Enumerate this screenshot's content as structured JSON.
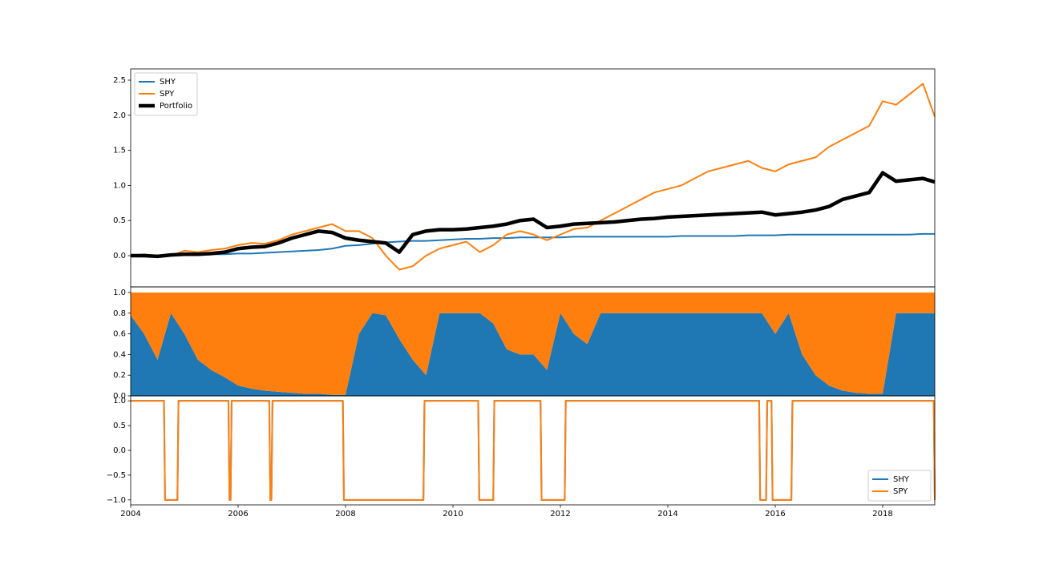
{
  "chart_data": [
    {
      "type": "line",
      "legend": "upper left",
      "x": [
        2004,
        2004.25,
        2004.5,
        2004.75,
        2005,
        2005.25,
        2005.5,
        2005.75,
        2006,
        2006.25,
        2006.5,
        2006.75,
        2007,
        2007.25,
        2007.5,
        2007.75,
        2008,
        2008.25,
        2008.5,
        2008.75,
        2009,
        2009.25,
        2009.5,
        2009.75,
        2010,
        2010.25,
        2010.5,
        2010.75,
        2011,
        2011.25,
        2011.5,
        2011.75,
        2012,
        2012.25,
        2012.5,
        2012.75,
        2013,
        2013.25,
        2013.5,
        2013.75,
        2014,
        2014.25,
        2014.5,
        2014.75,
        2015,
        2015.25,
        2015.5,
        2015.75,
        2016,
        2016.25,
        2016.5,
        2016.75,
        2017,
        2017.25,
        2017.5,
        2017.75,
        2018,
        2018.25,
        2018.5,
        2018.75,
        2018.97
      ],
      "xlim": [
        2004,
        2018.97
      ],
      "ylim": [
        -0.445,
        2.66
      ],
      "yticks": [
        {
          "value": 0,
          "label": "0.0"
        },
        {
          "value": 0.5,
          "label": "0.5"
        },
        {
          "value": 1,
          "label": "1.0"
        },
        {
          "value": 1.5,
          "label": "1.5"
        },
        {
          "value": 2,
          "label": "2.0"
        },
        {
          "value": 2.5,
          "label": "2.5"
        }
      ],
      "series": [
        {
          "name": "SHY",
          "color": "#1f77b4",
          "width": 2,
          "values": [
            0,
            0,
            0,
            0.01,
            0.01,
            0.01,
            0.02,
            0.02,
            0.03,
            0.03,
            0.04,
            0.05,
            0.06,
            0.07,
            0.08,
            0.1,
            0.14,
            0.15,
            0.17,
            0.19,
            0.2,
            0.21,
            0.21,
            0.22,
            0.23,
            0.24,
            0.24,
            0.25,
            0.25,
            0.26,
            0.26,
            0.26,
            0.26,
            0.27,
            0.27,
            0.27,
            0.27,
            0.27,
            0.27,
            0.27,
            0.27,
            0.28,
            0.28,
            0.28,
            0.28,
            0.28,
            0.29,
            0.29,
            0.29,
            0.3,
            0.3,
            0.3,
            0.3,
            0.3,
            0.3,
            0.3,
            0.3,
            0.3,
            0.3,
            0.31,
            0.31
          ]
        },
        {
          "name": "SPY",
          "color": "#ff7f0e",
          "width": 2,
          "values": [
            0,
            0.02,
            0,
            0,
            0.07,
            0.05,
            0.08,
            0.1,
            0.15,
            0.18,
            0.17,
            0.22,
            0.3,
            0.35,
            0.4,
            0.45,
            0.35,
            0.35,
            0.25,
            0,
            -0.2,
            -0.15,
            0,
            0.1,
            0.15,
            0.2,
            0.05,
            0.15,
            0.3,
            0.35,
            0.3,
            0.22,
            0.3,
            0.38,
            0.4,
            0.5,
            0.6,
            0.7,
            0.8,
            0.9,
            0.95,
            1,
            1.1,
            1.2,
            1.25,
            1.3,
            1.35,
            1.25,
            1.2,
            1.3,
            1.35,
            1.4,
            1.55,
            1.65,
            1.75,
            1.85,
            2.2,
            2.15,
            2.3,
            2.45,
            1.98
          ]
        },
        {
          "name": "Portfolio",
          "color": "#000000",
          "width": 4.5,
          "values": [
            0,
            0,
            -0.01,
            0.01,
            0.02,
            0.02,
            0.03,
            0.05,
            0.1,
            0.12,
            0.13,
            0.18,
            0.25,
            0.3,
            0.35,
            0.33,
            0.25,
            0.22,
            0.2,
            0.18,
            0.05,
            0.3,
            0.35,
            0.37,
            0.37,
            0.38,
            0.4,
            0.42,
            0.45,
            0.5,
            0.52,
            0.4,
            0.42,
            0.45,
            0.46,
            0.47,
            0.48,
            0.5,
            0.52,
            0.53,
            0.55,
            0.56,
            0.57,
            0.58,
            0.59,
            0.6,
            0.61,
            0.62,
            0.58,
            0.6,
            0.62,
            0.65,
            0.7,
            0.8,
            0.85,
            0.9,
            1.18,
            1.06,
            1.08,
            1.1,
            1.05
          ]
        }
      ]
    },
    {
      "type": "area",
      "x": [
        2004,
        2004.25,
        2004.5,
        2004.75,
        2005,
        2005.25,
        2005.5,
        2005.75,
        2006,
        2006.25,
        2006.5,
        2006.75,
        2007,
        2007.25,
        2007.5,
        2007.75,
        2008,
        2008.25,
        2008.5,
        2008.75,
        2009,
        2009.25,
        2009.5,
        2009.75,
        2010,
        2010.25,
        2010.5,
        2010.75,
        2011,
        2011.25,
        2011.5,
        2011.75,
        2012,
        2012.25,
        2012.5,
        2012.75,
        2013,
        2013.25,
        2013.5,
        2013.75,
        2014,
        2014.25,
        2014.5,
        2014.75,
        2015,
        2015.25,
        2015.5,
        2015.75,
        2016,
        2016.25,
        2016.5,
        2016.75,
        2017,
        2017.25,
        2017.5,
        2017.75,
        2018,
        2018.25,
        2018.5,
        2018.75,
        2018.97
      ],
      "xlim": [
        2004,
        2018.97
      ],
      "ylim": [
        0,
        1.054
      ],
      "yticks": [
        {
          "value": 0,
          "label": "0.0"
        },
        {
          "value": 0.2,
          "label": "0.2"
        },
        {
          "value": 0.4,
          "label": "0.4"
        },
        {
          "value": 0.6,
          "label": "0.6"
        },
        {
          "value": 0.8,
          "label": "0.8"
        },
        {
          "value": 1,
          "label": "1.0"
        }
      ],
      "series": [
        {
          "name": "SHY",
          "color": "#1f77b4",
          "values": [
            0.78,
            0.6,
            0.35,
            0.8,
            0.6,
            0.35,
            0.25,
            0.18,
            0.1,
            0.07,
            0.05,
            0.04,
            0.03,
            0.02,
            0.02,
            0.01,
            0.01,
            0.6,
            0.8,
            0.78,
            0.55,
            0.35,
            0.2,
            0.8,
            0.8,
            0.8,
            0.8,
            0.7,
            0.45,
            0.4,
            0.4,
            0.25,
            0.8,
            0.6,
            0.5,
            0.8,
            0.8,
            0.8,
            0.8,
            0.8,
            0.8,
            0.8,
            0.8,
            0.8,
            0.8,
            0.8,
            0.8,
            0.8,
            0.6,
            0.8,
            0.4,
            0.2,
            0.1,
            0.05,
            0.03,
            0.02,
            0.02,
            0.8,
            0.8,
            0.8,
            0.8
          ]
        },
        {
          "name": "SPY",
          "color": "#ff7f0e",
          "values": [
            0.22,
            0.4,
            0.65,
            0.2,
            0.4,
            0.65,
            0.75,
            0.82,
            0.9,
            0.93,
            0.95,
            0.96,
            0.97,
            0.98,
            0.98,
            0.99,
            0.99,
            0.4,
            0.2,
            0.22,
            0.45,
            0.65,
            0.8,
            0.2,
            0.2,
            0.2,
            0.2,
            0.3,
            0.55,
            0.6,
            0.6,
            0.75,
            0.2,
            0.4,
            0.5,
            0.2,
            0.2,
            0.2,
            0.2,
            0.2,
            0.2,
            0.2,
            0.2,
            0.2,
            0.2,
            0.2,
            0.2,
            0.2,
            0.4,
            0.2,
            0.6,
            0.8,
            0.9,
            0.95,
            0.97,
            0.98,
            0.98,
            0.2,
            0.2,
            0.2,
            0.2
          ]
        }
      ]
    },
    {
      "type": "line",
      "legend": "lower right",
      "x": [
        2004,
        2004.62,
        2004.64,
        2004.87,
        2004.89,
        2005.82,
        2005.84,
        2005.86,
        2005.88,
        2006.58,
        2006.6,
        2006.62,
        2006.64,
        2007.95,
        2007.97,
        2009.45,
        2009.47,
        2010.47,
        2010.49,
        2010.75,
        2010.77,
        2011.63,
        2011.65,
        2012.08,
        2012.1,
        2015.7,
        2015.72,
        2015.83,
        2015.85,
        2015.93,
        2015.95,
        2016.3,
        2016.32,
        2018.95,
        2018.97
      ],
      "xlim": [
        2004,
        2018.97
      ],
      "ylim": [
        -1.1,
        1.1
      ],
      "xticks": [
        2004,
        2006,
        2008,
        2010,
        2012,
        2014,
        2016,
        2018
      ],
      "yticks": [
        {
          "value": -1,
          "label": "−1.0"
        },
        {
          "value": -0.5,
          "label": "−0.5"
        },
        {
          "value": 0,
          "label": "0.0"
        },
        {
          "value": 0.5,
          "label": "0.5"
        },
        {
          "value": 1,
          "label": "1.0"
        }
      ],
      "series": [
        {
          "name": "SHY",
          "color": "#1f77b4",
          "width": 2,
          "values": [
            1,
            1,
            -1,
            -1,
            1,
            1,
            -1,
            -1,
            1,
            1,
            -1,
            -1,
            1,
            1,
            -1,
            -1,
            1,
            1,
            -1,
            -1,
            1,
            1,
            -1,
            -1,
            1,
            1,
            -1,
            -1,
            1,
            1,
            -1,
            -1,
            1,
            1,
            -1
          ]
        },
        {
          "name": "SPY",
          "color": "#ff7f0e",
          "width": 2,
          "values": [
            1,
            1,
            -1,
            -1,
            1,
            1,
            -1,
            -1,
            1,
            1,
            -1,
            -1,
            1,
            1,
            -1,
            -1,
            1,
            1,
            -1,
            -1,
            1,
            1,
            -1,
            -1,
            1,
            1,
            -1,
            -1,
            1,
            1,
            -1,
            -1,
            1,
            1,
            -1
          ]
        }
      ]
    }
  ]
}
